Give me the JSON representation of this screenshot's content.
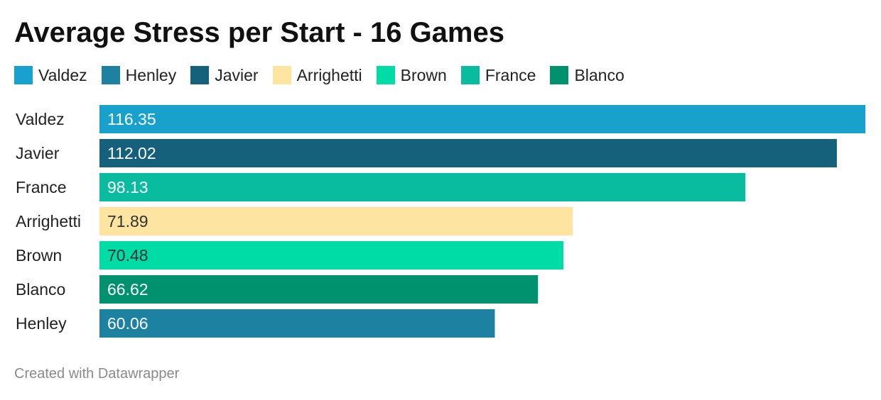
{
  "chart_data": {
    "type": "bar",
    "orientation": "horizontal",
    "title": "Average Stress per Start - 16 Games",
    "categories": [
      "Valdez",
      "Javier",
      "France",
      "Arrighetti",
      "Brown",
      "Blanco",
      "Henley"
    ],
    "values": [
      116.35,
      112.02,
      98.13,
      71.89,
      70.48,
      66.62,
      60.06
    ],
    "value_labels": [
      "116.35",
      "112.02",
      "98.13",
      "71.89",
      "70.48",
      "66.62",
      "60.06"
    ],
    "bar_colors": [
      "#18a1cd",
      "#15607a",
      "#09bb9f",
      "#fde5a1",
      "#00dca6",
      "#00916e",
      "#1d81a2"
    ],
    "label_colors": [
      "#ffffff",
      "#ffffff",
      "#ffffff",
      "#333333",
      "#333333",
      "#ffffff",
      "#ffffff"
    ],
    "xlim": [
      0,
      116.35
    ],
    "legend": {
      "placement": "top-left",
      "entries": [
        {
          "label": "Valdez",
          "color": "#18a1cd"
        },
        {
          "label": "Henley",
          "color": "#1d81a2"
        },
        {
          "label": "Javier",
          "color": "#15607a"
        },
        {
          "label": "Arrighetti",
          "color": "#fde5a1"
        },
        {
          "label": "Brown",
          "color": "#00dca6"
        },
        {
          "label": "France",
          "color": "#09bb9f"
        },
        {
          "label": "Blanco",
          "color": "#00916e"
        }
      ]
    },
    "grid": false
  },
  "footer": {
    "credit": "Created with Datawrapper"
  }
}
